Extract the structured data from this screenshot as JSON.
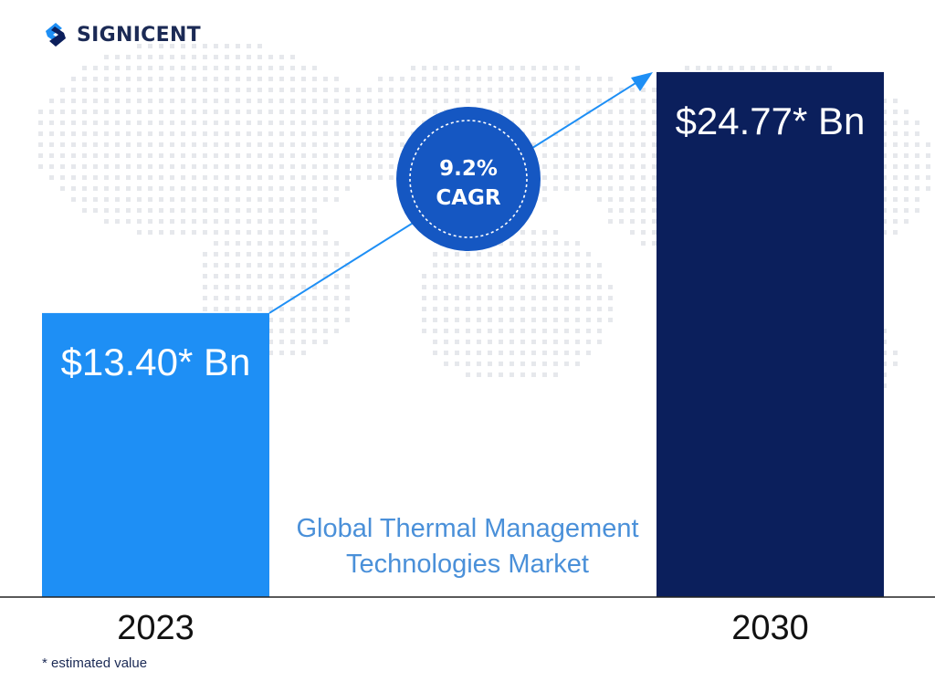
{
  "brand": {
    "name": "SIGNICENT",
    "logo_icon": "signicent-logo-icon"
  },
  "chart_data": {
    "type": "bar",
    "title": "Global Thermal Management Technologies Market",
    "title_lines": [
      "Global Thermal Management",
      "Technologies Market"
    ],
    "categories": [
      "2023",
      "2030"
    ],
    "values": [
      13.4,
      24.77
    ],
    "value_labels": [
      "$13.40* Bn",
      "$24.77* Bn"
    ],
    "unit": "Bn USD",
    "bar_colors": [
      "#1e8ff5",
      "#0b1f5c"
    ],
    "cagr": {
      "value": "9.2%",
      "label": "CAGR"
    },
    "ylim": [
      0,
      25.5
    ],
    "grid": false,
    "legend": "none"
  },
  "footnote": "* estimated value",
  "colors": {
    "accent": "#1e8ff5",
    "dark": "#0b1f5c",
    "title": "#4a90d9",
    "map_dots": "#e6e8ec"
  }
}
